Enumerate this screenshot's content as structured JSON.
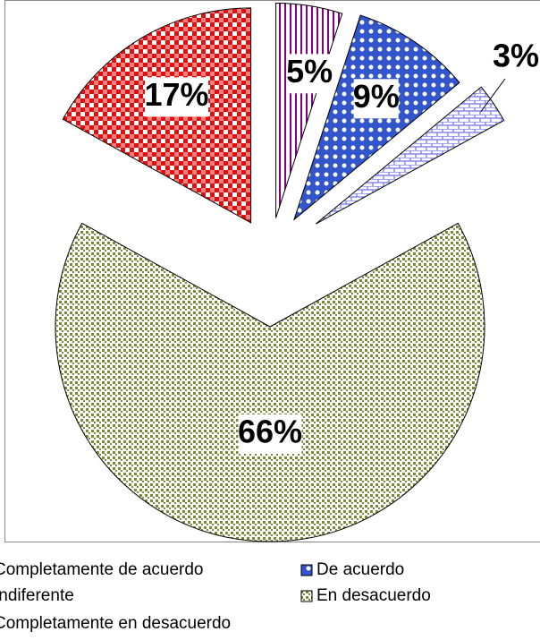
{
  "chart_data": {
    "type": "pie",
    "categories": [
      "Completamente de acuerdo",
      "De acuerdo",
      "Indiferente",
      "En desacuerdo",
      "Completamente en desacuerdo"
    ],
    "values": [
      5,
      9,
      3,
      66,
      17
    ],
    "value_labels": [
      "5%",
      "9%",
      "3%",
      "66%",
      "17%"
    ],
    "colors": [
      "#800080",
      "#3355cc",
      "#8888ee",
      "#7a8a3a",
      "#e01010"
    ],
    "legend": "bottom"
  }
}
